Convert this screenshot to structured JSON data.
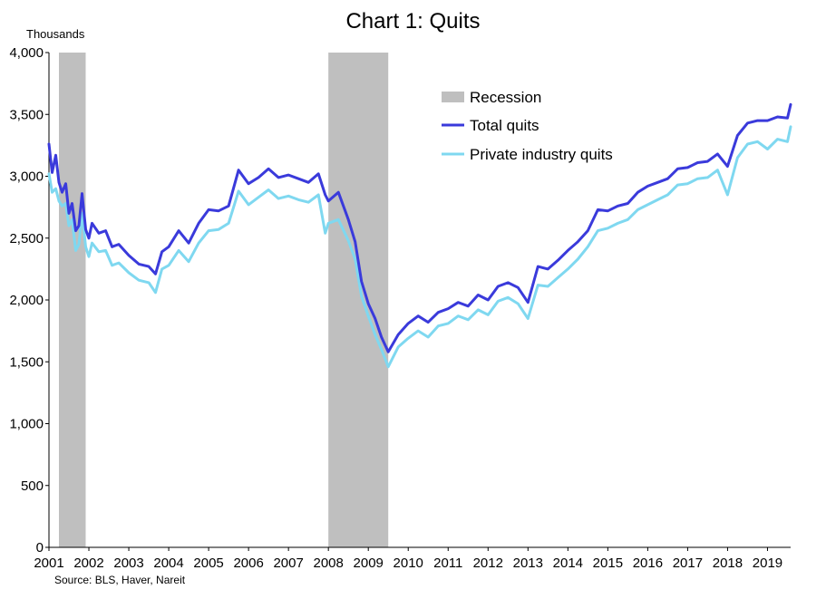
{
  "chart_data": {
    "type": "line",
    "title": "Chart 1: Quits",
    "units_label": "Thousands",
    "source": "Source:  BLS, Haver,  Nareit",
    "ylim": [
      0,
      4000
    ],
    "y_ticks": [
      0,
      500,
      1000,
      1500,
      2000,
      2500,
      3000,
      3500,
      4000
    ],
    "y_tick_labels": [
      "0",
      "500",
      "1,000",
      "1,500",
      "2,000",
      "2,500",
      "3,000",
      "3,500",
      "4,000"
    ],
    "x_range": [
      2001.0,
      2019.58
    ],
    "x_ticks": [
      2001,
      2002,
      2003,
      2004,
      2005,
      2006,
      2007,
      2008,
      2009,
      2010,
      2011,
      2012,
      2013,
      2014,
      2015,
      2016,
      2017,
      2018,
      2019
    ],
    "x_tick_labels": [
      "2001",
      "2002",
      "2003",
      "2004",
      "2005",
      "2006",
      "2007",
      "2008",
      "2009",
      "2010",
      "2011",
      "2012",
      "2013",
      "2014",
      "2015",
      "2016",
      "2017",
      "2018",
      "2019"
    ],
    "grid": false,
    "legend_position": "top-right",
    "legend": [
      "Recession",
      "Total quits",
      "Private industry quits"
    ],
    "recessions": [
      {
        "name": "Recession",
        "start": 2001.25,
        "end": 2001.92
      },
      {
        "name": "Recession",
        "start": 2008.0,
        "end": 2009.5
      }
    ],
    "series": [
      {
        "name": "Total quits",
        "color": "#3a3adb",
        "x": [
          2001.0,
          2001.08,
          2001.17,
          2001.25,
          2001.33,
          2001.42,
          2001.5,
          2001.58,
          2001.67,
          2001.75,
          2001.83,
          2001.92,
          2002.0,
          2002.08,
          2002.25,
          2002.42,
          2002.58,
          2002.75,
          2003.0,
          2003.25,
          2003.5,
          2003.67,
          2003.83,
          2004.0,
          2004.25,
          2004.5,
          2004.75,
          2005.0,
          2005.25,
          2005.5,
          2005.75,
          2006.0,
          2006.25,
          2006.5,
          2006.75,
          2007.0,
          2007.25,
          2007.5,
          2007.75,
          2007.92,
          2008.0,
          2008.25,
          2008.5,
          2008.67,
          2008.83,
          2009.0,
          2009.17,
          2009.33,
          2009.5,
          2009.75,
          2010.0,
          2010.25,
          2010.5,
          2010.75,
          2011.0,
          2011.25,
          2011.5,
          2011.75,
          2012.0,
          2012.25,
          2012.5,
          2012.75,
          2013.0,
          2013.25,
          2013.5,
          2013.75,
          2014.0,
          2014.25,
          2014.5,
          2014.75,
          2015.0,
          2015.25,
          2015.5,
          2015.75,
          2016.0,
          2016.25,
          2016.5,
          2016.75,
          2017.0,
          2017.25,
          2017.5,
          2017.75,
          2018.0,
          2018.25,
          2018.5,
          2018.75,
          2019.0,
          2019.25,
          2019.5,
          2019.58
        ],
        "values": [
          3260,
          3030,
          3170,
          2950,
          2870,
          2940,
          2700,
          2780,
          2560,
          2600,
          2860,
          2570,
          2500,
          2620,
          2540,
          2560,
          2430,
          2450,
          2360,
          2290,
          2270,
          2210,
          2390,
          2430,
          2560,
          2460,
          2620,
          2730,
          2720,
          2760,
          3050,
          2940,
          2990,
          3060,
          2990,
          3010,
          2980,
          2950,
          3020,
          2850,
          2800,
          2870,
          2650,
          2470,
          2150,
          1970,
          1850,
          1700,
          1580,
          1720,
          1810,
          1870,
          1820,
          1900,
          1930,
          1980,
          1950,
          2040,
          2000,
          2110,
          2140,
          2100,
          1980,
          2270,
          2250,
          2320,
          2400,
          2470,
          2560,
          2730,
          2720,
          2760,
          2780,
          2870,
          2920,
          2950,
          2980,
          3060,
          3070,
          3110,
          3120,
          3180,
          3080,
          3330,
          3430,
          3450,
          3450,
          3480,
          3470,
          3580
        ]
      },
      {
        "name": "Private industry quits",
        "color": "#7fd8f0",
        "x": [
          2001.0,
          2001.08,
          2001.17,
          2001.25,
          2001.33,
          2001.42,
          2001.5,
          2001.58,
          2001.67,
          2001.75,
          2001.83,
          2001.92,
          2002.0,
          2002.08,
          2002.25,
          2002.42,
          2002.58,
          2002.75,
          2003.0,
          2003.25,
          2003.5,
          2003.67,
          2003.83,
          2004.0,
          2004.25,
          2004.5,
          2004.75,
          2005.0,
          2005.25,
          2005.5,
          2005.75,
          2006.0,
          2006.25,
          2006.5,
          2006.75,
          2007.0,
          2007.25,
          2007.5,
          2007.75,
          2007.92,
          2008.0,
          2008.25,
          2008.5,
          2008.67,
          2008.83,
          2009.0,
          2009.17,
          2009.33,
          2009.5,
          2009.75,
          2010.0,
          2010.25,
          2010.5,
          2010.75,
          2011.0,
          2011.25,
          2011.5,
          2011.75,
          2012.0,
          2012.25,
          2012.5,
          2012.75,
          2013.0,
          2013.25,
          2013.5,
          2013.75,
          2014.0,
          2014.25,
          2014.5,
          2014.75,
          2015.0,
          2015.25,
          2015.5,
          2015.75,
          2016.0,
          2016.25,
          2016.5,
          2016.75,
          2017.0,
          2017.25,
          2017.5,
          2017.75,
          2018.0,
          2018.25,
          2018.5,
          2018.75,
          2019.0,
          2019.25,
          2019.5,
          2019.58
        ],
        "values": [
          3020,
          2870,
          2900,
          2800,
          2760,
          2780,
          2600,
          2650,
          2400,
          2450,
          2700,
          2430,
          2350,
          2460,
          2390,
          2400,
          2280,
          2300,
          2220,
          2160,
          2140,
          2060,
          2250,
          2280,
          2400,
          2310,
          2460,
          2560,
          2570,
          2620,
          2880,
          2770,
          2830,
          2890,
          2820,
          2840,
          2810,
          2790,
          2850,
          2540,
          2620,
          2650,
          2480,
          2330,
          2030,
          1870,
          1720,
          1600,
          1460,
          1620,
          1690,
          1750,
          1700,
          1790,
          1810,
          1870,
          1840,
          1920,
          1880,
          1990,
          2020,
          1970,
          1850,
          2120,
          2110,
          2180,
          2250,
          2330,
          2430,
          2560,
          2580,
          2620,
          2650,
          2730,
          2770,
          2810,
          2850,
          2930,
          2940,
          2980,
          2990,
          3050,
          2850,
          3150,
          3260,
          3280,
          3220,
          3300,
          3280,
          3400
        ]
      }
    ]
  }
}
